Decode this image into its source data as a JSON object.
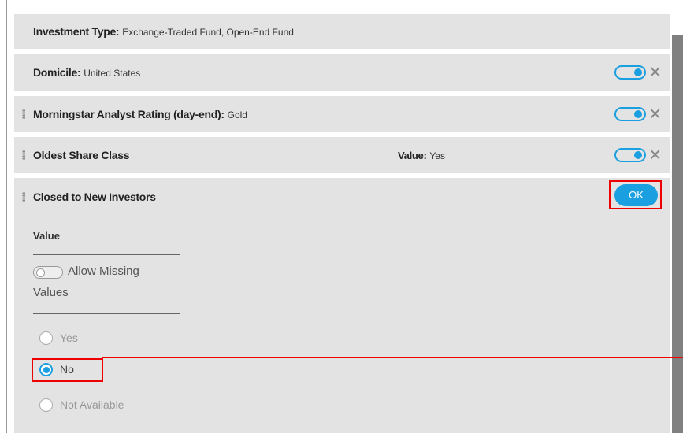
{
  "rows": [
    {
      "label": "Investment Type:",
      "value": "Exchange-Traded Fund, Open-End Fund"
    },
    {
      "label": "Domicile:",
      "value": "United States"
    },
    {
      "label": "Morningstar Analyst Rating (day-end):",
      "value": "Gold"
    },
    {
      "label": "Oldest Share Class",
      "value_label": "Value:",
      "value": "Yes"
    }
  ],
  "expanded": {
    "label": "Closed to New Investors",
    "ok_button": "OK",
    "section_label": "Value",
    "toggle_label_1": "Allow Missing",
    "toggle_label_2": "Values",
    "options": [
      "Yes",
      "No",
      "Not Available"
    ]
  }
}
